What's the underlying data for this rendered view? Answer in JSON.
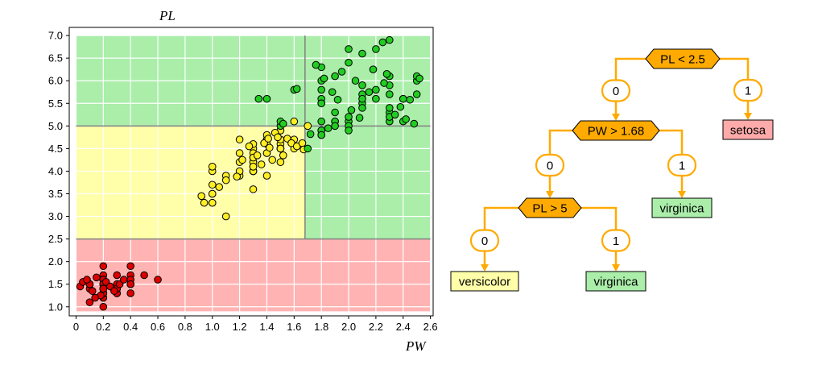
{
  "chart_data": {
    "type": "scatter",
    "title": "",
    "xlabel": "PW",
    "ylabel": "PL",
    "xlim": [
      -0.05,
      2.62
    ],
    "ylim": [
      0.8,
      7.18
    ],
    "xticks": [
      "0",
      "0.2",
      "0.4",
      "0.6",
      "0.8",
      "1.0",
      "1.2",
      "1.4",
      "1.6",
      "1.8",
      "2.0",
      "2.2",
      "2.4",
      "2.6"
    ],
    "yticks": [
      "1.0",
      "1.5",
      "2.0",
      "2.5",
      "3.0",
      "3.5",
      "4.0",
      "4.5",
      "5.0",
      "5.5",
      "6.0",
      "6.5",
      "7.0"
    ],
    "grid": true,
    "regions": [
      {
        "class": "setosa",
        "color": "#ffb3b3",
        "x": [
          0,
          2.6
        ],
        "y": [
          0.9,
          2.5
        ]
      },
      {
        "class": "versicolor",
        "color": "#ffffaa",
        "x": [
          0,
          1.68
        ],
        "y": [
          2.5,
          5.0
        ]
      },
      {
        "class": "virginica",
        "color": "#aaeeaa",
        "x": [
          0,
          1.68
        ],
        "y": [
          5.0,
          7.0
        ]
      },
      {
        "class": "virginica",
        "color": "#aaeeaa",
        "x": [
          1.68,
          2.6
        ],
        "y": [
          2.5,
          7.0
        ]
      }
    ],
    "split_lines": [
      {
        "orientation": "horizontal",
        "value": 2.5
      },
      {
        "orientation": "horizontal",
        "value": 5.0
      },
      {
        "orientation": "vertical",
        "value": 1.68
      }
    ],
    "series": [
      {
        "class": "setosa",
        "color": "#dd0000",
        "points": [
          [
            0.2,
            1.4
          ],
          [
            0.2,
            1.4
          ],
          [
            0.2,
            1.3
          ],
          [
            0.2,
            1.5
          ],
          [
            0.2,
            1.4
          ],
          [
            0.4,
            1.7
          ],
          [
            0.3,
            1.4
          ],
          [
            0.2,
            1.5
          ],
          [
            0.2,
            1.4
          ],
          [
            0.1,
            1.5
          ],
          [
            0.2,
            1.5
          ],
          [
            0.2,
            1.6
          ],
          [
            0.1,
            1.4
          ],
          [
            0.1,
            1.1
          ],
          [
            0.2,
            1.2
          ],
          [
            0.4,
            1.5
          ],
          [
            0.4,
            1.3
          ],
          [
            0.3,
            1.4
          ],
          [
            0.3,
            1.7
          ],
          [
            0.3,
            1.5
          ],
          [
            0.2,
            1.7
          ],
          [
            0.4,
            1.5
          ],
          [
            0.2,
            1.0
          ],
          [
            0.5,
            1.7
          ],
          [
            0.2,
            1.9
          ],
          [
            0.2,
            1.6
          ],
          [
            0.4,
            1.6
          ],
          [
            0.2,
            1.5
          ],
          [
            0.2,
            1.4
          ],
          [
            0.2,
            1.6
          ],
          [
            0.2,
            1.6
          ],
          [
            0.4,
            1.5
          ],
          [
            0.1,
            1.5
          ],
          [
            0.2,
            1.4
          ],
          [
            0.1,
            1.5
          ],
          [
            0.2,
            1.2
          ],
          [
            0.2,
            1.3
          ],
          [
            0.1,
            1.5
          ],
          [
            0.2,
            1.3
          ],
          [
            0.2,
            1.5
          ],
          [
            0.3,
            1.3
          ],
          [
            0.3,
            1.3
          ],
          [
            0.2,
            1.3
          ],
          [
            0.6,
            1.6
          ],
          [
            0.4,
            1.9
          ],
          [
            0.3,
            1.4
          ],
          [
            0.2,
            1.6
          ],
          [
            0.2,
            1.4
          ],
          [
            0.2,
            1.5
          ],
          [
            0.2,
            1.4
          ],
          [
            0.03,
            1.45
          ],
          [
            0.05,
            1.55
          ],
          [
            0.08,
            1.6
          ],
          [
            0.12,
            1.35
          ],
          [
            0.15,
            1.65
          ],
          [
            0.18,
            1.25
          ],
          [
            0.22,
            1.55
          ],
          [
            0.25,
            1.45
          ],
          [
            0.28,
            1.35
          ],
          [
            0.32,
            1.5
          ],
          [
            0.35,
            1.6
          ],
          [
            0.14,
            1.2
          ]
        ]
      },
      {
        "class": "versicolor",
        "color": "#ffee22",
        "points": [
          [
            1.4,
            4.7
          ],
          [
            1.5,
            4.5
          ],
          [
            1.5,
            4.9
          ],
          [
            1.3,
            4.0
          ],
          [
            1.5,
            4.6
          ],
          [
            1.3,
            4.5
          ],
          [
            1.6,
            4.7
          ],
          [
            1.0,
            3.3
          ],
          [
            1.3,
            4.6
          ],
          [
            1.4,
            3.9
          ],
          [
            1.0,
            3.5
          ],
          [
            1.5,
            4.2
          ],
          [
            1.0,
            4.0
          ],
          [
            1.4,
            4.7
          ],
          [
            1.3,
            3.6
          ],
          [
            1.4,
            4.4
          ],
          [
            1.5,
            4.5
          ],
          [
            1.0,
            4.1
          ],
          [
            1.5,
            4.5
          ],
          [
            1.1,
            3.9
          ],
          [
            1.3,
            4.0
          ],
          [
            1.5,
            4.9
          ],
          [
            1.2,
            4.7
          ],
          [
            1.3,
            4.3
          ],
          [
            1.4,
            4.4
          ],
          [
            1.4,
            4.8
          ],
          [
            1.7,
            5.0
          ],
          [
            1.5,
            4.5
          ],
          [
            1.0,
            3.5
          ],
          [
            1.1,
            3.8
          ],
          [
            1.0,
            3.7
          ],
          [
            1.2,
            3.9
          ],
          [
            1.6,
            5.1
          ],
          [
            1.5,
            4.5
          ],
          [
            1.6,
            4.5
          ],
          [
            1.5,
            4.7
          ],
          [
            1.3,
            4.4
          ],
          [
            1.3,
            4.1
          ],
          [
            1.3,
            4.0
          ],
          [
            1.2,
            4.4
          ],
          [
            1.4,
            4.6
          ],
          [
            1.2,
            4.0
          ],
          [
            1.0,
            3.3
          ],
          [
            1.3,
            4.2
          ],
          [
            1.2,
            4.2
          ],
          [
            1.3,
            4.2
          ],
          [
            1.3,
            4.3
          ],
          [
            1.1,
            3.0
          ],
          [
            1.3,
            4.1
          ],
          [
            0.92,
            3.45
          ],
          [
            0.94,
            3.3
          ],
          [
            1.05,
            3.65
          ],
          [
            1.18,
            3.88
          ],
          [
            1.22,
            4.25
          ],
          [
            1.27,
            4.55
          ],
          [
            1.33,
            4.35
          ],
          [
            1.36,
            4.15
          ],
          [
            1.38,
            4.62
          ],
          [
            1.42,
            4.52
          ],
          [
            1.44,
            4.25
          ],
          [
            1.46,
            4.85
          ],
          [
            1.52,
            4.35
          ],
          [
            1.55,
            4.72
          ],
          [
            1.58,
            4.62
          ],
          [
            1.62,
            4.55
          ],
          [
            1.66,
            4.62
          ],
          [
            1.41,
            4.72
          ],
          [
            1.48,
            4.75
          ],
          [
            1.67,
            4.48
          ]
        ]
      },
      {
        "class": "virginica",
        "color": "#22cc22",
        "points": [
          [
            2.5,
            6.0
          ],
          [
            1.9,
            5.1
          ],
          [
            2.1,
            5.9
          ],
          [
            1.8,
            5.6
          ],
          [
            2.2,
            5.8
          ],
          [
            2.1,
            6.6
          ],
          [
            1.7,
            4.5
          ],
          [
            1.8,
            6.3
          ],
          [
            1.8,
            5.8
          ],
          [
            2.5,
            6.1
          ],
          [
            2.0,
            5.1
          ],
          [
            1.9,
            5.3
          ],
          [
            2.1,
            5.5
          ],
          [
            2.0,
            5.0
          ],
          [
            2.4,
            5.1
          ],
          [
            2.3,
            5.3
          ],
          [
            1.8,
            5.5
          ],
          [
            2.2,
            6.7
          ],
          [
            2.3,
            6.9
          ],
          [
            1.5,
            5.0
          ],
          [
            2.3,
            5.7
          ],
          [
            2.0,
            4.9
          ],
          [
            2.0,
            6.7
          ],
          [
            1.8,
            4.9
          ],
          [
            2.1,
            5.7
          ],
          [
            1.8,
            6.0
          ],
          [
            1.8,
            4.8
          ],
          [
            1.8,
            4.9
          ],
          [
            2.1,
            5.6
          ],
          [
            1.6,
            5.8
          ],
          [
            1.9,
            6.1
          ],
          [
            2.0,
            6.4
          ],
          [
            2.2,
            5.6
          ],
          [
            1.5,
            5.1
          ],
          [
            1.4,
            5.6
          ],
          [
            2.3,
            6.1
          ],
          [
            2.4,
            5.6
          ],
          [
            1.8,
            5.5
          ],
          [
            1.8,
            4.8
          ],
          [
            2.1,
            5.4
          ],
          [
            2.4,
            5.6
          ],
          [
            2.3,
            5.1
          ],
          [
            1.9,
            5.1
          ],
          [
            2.3,
            5.9
          ],
          [
            2.5,
            5.7
          ],
          [
            2.3,
            5.2
          ],
          [
            1.9,
            5.0
          ],
          [
            2.0,
            5.2
          ],
          [
            2.3,
            5.4
          ],
          [
            1.8,
            5.1
          ],
          [
            1.34,
            5.6
          ],
          [
            1.52,
            5.05
          ],
          [
            1.62,
            5.82
          ],
          [
            1.72,
            4.82
          ],
          [
            1.76,
            6.35
          ],
          [
            1.85,
            4.95
          ],
          [
            1.88,
            5.75
          ],
          [
            1.92,
            5.58
          ],
          [
            1.95,
            6.2
          ],
          [
            2.02,
            5.35
          ],
          [
            2.05,
            6.0
          ],
          [
            2.08,
            5.18
          ],
          [
            2.15,
            5.75
          ],
          [
            2.18,
            6.25
          ],
          [
            2.26,
            5.95
          ],
          [
            2.28,
            6.15
          ],
          [
            2.34,
            5.25
          ],
          [
            2.38,
            5.42
          ],
          [
            2.42,
            5.15
          ],
          [
            2.45,
            5.58
          ],
          [
            2.48,
            5.05
          ],
          [
            2.52,
            6.05
          ],
          [
            1.82,
            6.05
          ],
          [
            2.25,
            6.85
          ]
        ]
      }
    ]
  },
  "tree": {
    "nodes": [
      {
        "id": "root",
        "label": "PL < 2.5",
        "type": "decision",
        "fill": "#ffaa00"
      },
      {
        "id": "pw",
        "label": "PW > 1.68",
        "type": "decision",
        "fill": "#ffaa00"
      },
      {
        "id": "pl5",
        "label": "PL > 5",
        "type": "decision",
        "fill": "#ffaa00"
      },
      {
        "id": "setosa",
        "label": "setosa",
        "type": "leaf",
        "fill": "#ffaaaa"
      },
      {
        "id": "virginica1",
        "label": "virginica",
        "type": "leaf",
        "fill": "#aaeeaa"
      },
      {
        "id": "versicolor",
        "label": "versicolor",
        "type": "leaf",
        "fill": "#ffffaa"
      },
      {
        "id": "virginica2",
        "label": "virginica",
        "type": "leaf",
        "fill": "#aaeeaa"
      }
    ],
    "edges": [
      {
        "from": "root",
        "to": "pw",
        "label": "0"
      },
      {
        "from": "root",
        "to": "setosa",
        "label": "1"
      },
      {
        "from": "pw",
        "to": "pl5",
        "label": "0"
      },
      {
        "from": "pw",
        "to": "virginica1",
        "label": "1"
      },
      {
        "from": "pl5",
        "to": "versicolor",
        "label": "0"
      },
      {
        "from": "pl5",
        "to": "virginica2",
        "label": "1"
      }
    ],
    "edge_color": "#ffaa00"
  }
}
